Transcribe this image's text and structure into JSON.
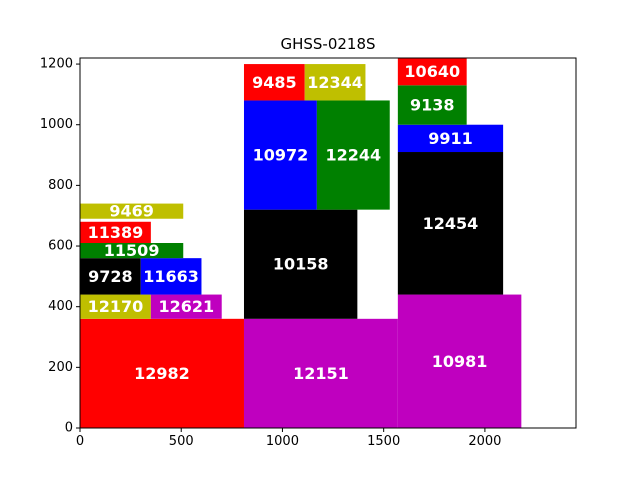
{
  "chart_data": {
    "type": "treemap",
    "title": "GHSS-0218S",
    "xlim": [
      0,
      2450
    ],
    "ylim": [
      0,
      1220
    ],
    "xticks": [
      0,
      500,
      1000,
      1500,
      2000
    ],
    "yticks": [
      0,
      200,
      400,
      600,
      800,
      1000,
      1200
    ],
    "colors": {
      "red": "#ff0000",
      "magenta": "#bf00bf",
      "yellow": "#bfbf00",
      "black": "#000000",
      "green": "#008000",
      "blue": "#0000ff"
    },
    "rects": [
      {
        "label": "12982",
        "x": 0,
        "y": 0,
        "w": 810,
        "h": 360,
        "color": "#ff0000"
      },
      {
        "label": "12151",
        "x": 810,
        "y": 0,
        "w": 760,
        "h": 360,
        "color": "#bf00bf"
      },
      {
        "label": "10981",
        "x": 1570,
        "y": 0,
        "w": 610,
        "h": 440,
        "color": "#bf00bf"
      },
      {
        "label": "12170",
        "x": 0,
        "y": 360,
        "w": 350,
        "h": 80,
        "color": "#bfbf00"
      },
      {
        "label": "12621",
        "x": 350,
        "y": 360,
        "w": 350,
        "h": 80,
        "color": "#bf00bf"
      },
      {
        "label": "9728",
        "x": 0,
        "y": 440,
        "w": 300,
        "h": 120,
        "color": "#000000"
      },
      {
        "label": "11663",
        "x": 300,
        "y": 440,
        "w": 300,
        "h": 120,
        "color": "#0000ff"
      },
      {
        "label": "11509",
        "x": 0,
        "y": 560,
        "w": 510,
        "h": 50,
        "color": "#008000"
      },
      {
        "label": "11389",
        "x": 0,
        "y": 610,
        "w": 350,
        "h": 70,
        "color": "#ff0000"
      },
      {
        "label": "9469",
        "x": 0,
        "y": 690,
        "w": 510,
        "h": 50,
        "color": "#bfbf00"
      },
      {
        "label": "10158",
        "x": 810,
        "y": 360,
        "w": 560,
        "h": 360,
        "color": "#000000"
      },
      {
        "label": "10972",
        "x": 810,
        "y": 720,
        "w": 360,
        "h": 360,
        "color": "#0000ff"
      },
      {
        "label": "12244",
        "x": 1170,
        "y": 720,
        "w": 360,
        "h": 360,
        "color": "#008000"
      },
      {
        "label": "9485",
        "x": 810,
        "y": 1080,
        "w": 300,
        "h": 120,
        "color": "#ff0000"
      },
      {
        "label": "12344",
        "x": 1110,
        "y": 1080,
        "w": 300,
        "h": 120,
        "color": "#bfbf00"
      },
      {
        "label": "12454",
        "x": 1570,
        "y": 440,
        "w": 520,
        "h": 470,
        "color": "#000000"
      },
      {
        "label": "9911",
        "x": 1570,
        "y": 910,
        "w": 520,
        "h": 90,
        "color": "#0000ff"
      },
      {
        "label": "9138",
        "x": 1570,
        "y": 1000,
        "w": 340,
        "h": 130,
        "color": "#008000"
      },
      {
        "label": "10640",
        "x": 1570,
        "y": 1130,
        "w": 340,
        "h": 90,
        "color": "#ff0000"
      }
    ]
  }
}
